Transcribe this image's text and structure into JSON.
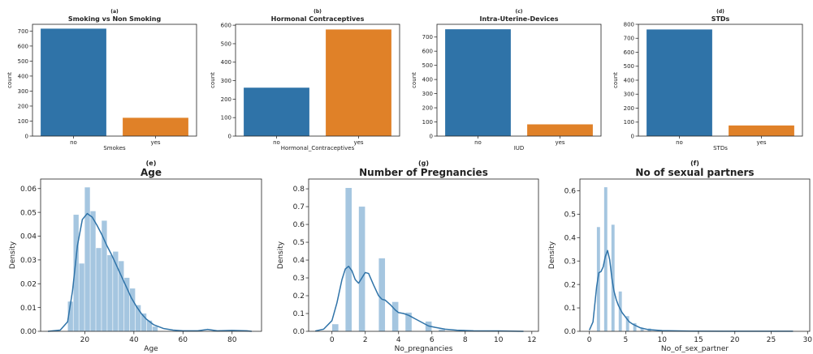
{
  "chart_data": [
    {
      "type": "bar",
      "letter": "(a)",
      "title": "Smoking vs Non Smoking",
      "xlabel": "Smokes",
      "ylabel": "count",
      "categories": [
        "no",
        "yes"
      ],
      "values": [
        716,
        122
      ],
      "colors": [
        "#2f73a8",
        "#e08128"
      ],
      "ylim": [
        0,
        745
      ],
      "yticks": [
        0,
        100,
        200,
        300,
        400,
        500,
        600,
        700
      ]
    },
    {
      "type": "bar",
      "letter": "(b)",
      "title": "Hormonal Contraceptives",
      "xlabel": "Hormonal_Contraceptives",
      "ylabel": "count",
      "categories": [
        "no",
        "yes"
      ],
      "values": [
        262,
        577
      ],
      "colors": [
        "#2f73a8",
        "#e08128"
      ],
      "ylim": [
        0,
        605
      ],
      "yticks": [
        0,
        100,
        200,
        300,
        400,
        500,
        600
      ]
    },
    {
      "type": "bar",
      "letter": "(c)",
      "title": "Intra-Uterine-Devices",
      "xlabel": "IUD",
      "ylabel": "count",
      "categories": [
        "no",
        "yes"
      ],
      "values": [
        755,
        83
      ],
      "colors": [
        "#2f73a8",
        "#e08128"
      ],
      "ylim": [
        0,
        790
      ],
      "yticks": [
        0,
        100,
        200,
        300,
        400,
        500,
        600,
        700
      ]
    },
    {
      "type": "bar",
      "letter": "(d)",
      "title": "STDs",
      "xlabel": "STDs",
      "ylabel": "count",
      "categories": [
        "no",
        "yes"
      ],
      "values": [
        763,
        76
      ],
      "colors": [
        "#2f73a8",
        "#e08128"
      ],
      "ylim": [
        0,
        800
      ],
      "yticks": [
        0,
        100,
        200,
        300,
        400,
        500,
        600,
        700,
        800
      ]
    },
    {
      "type": "histogram",
      "letter": "(e)",
      "title": "Age",
      "xlabel": "Age",
      "ylabel": "Density",
      "xlim": [
        2,
        92
      ],
      "ylim": [
        0,
        0.064
      ],
      "xticks": [
        20,
        40,
        60,
        80
      ],
      "yticks": [
        0.0,
        0.01,
        0.02,
        0.03,
        0.04,
        0.05,
        0.06
      ],
      "ytick_labels": [
        "0.00",
        "0.01",
        "0.02",
        "0.03",
        "0.04",
        "0.05",
        "0.06"
      ],
      "bin_edges": [
        13,
        15.3,
        17.6,
        19.9,
        22.2,
        24.5,
        26.8,
        29.1,
        31.4,
        33.7,
        36.0,
        38.3,
        40.6,
        42.9,
        45.2,
        47.5,
        49.8
      ],
      "bin_heights": [
        0.0125,
        0.049,
        0.0285,
        0.0605,
        0.0505,
        0.035,
        0.0465,
        0.032,
        0.0335,
        0.0295,
        0.0225,
        0.018,
        0.011,
        0.0075,
        0.0045,
        0.002
      ],
      "kde_x": [
        5,
        10,
        13,
        15,
        17,
        19,
        21,
        23,
        25,
        27,
        29,
        31,
        33,
        35,
        37,
        39,
        41,
        43,
        45,
        48,
        52,
        56,
        60,
        66,
        70,
        74,
        80,
        86,
        88
      ],
      "kde_y": [
        0,
        0.0005,
        0.004,
        0.017,
        0.036,
        0.047,
        0.0495,
        0.048,
        0.0445,
        0.0405,
        0.036,
        0.032,
        0.0275,
        0.023,
        0.0185,
        0.014,
        0.0105,
        0.0075,
        0.0052,
        0.0028,
        0.0012,
        0.0005,
        0.0002,
        0.0002,
        0.0008,
        0.0002,
        0.0004,
        0.0002,
        0
      ],
      "bar_color": "#a5c6e0",
      "line_color": "#2f73a8"
    },
    {
      "type": "histogram",
      "letter": "(g)",
      "title": "Number of Pregnancies",
      "xlabel": "No_pregnancies",
      "ylabel": "Density",
      "xlim": [
        -1.4,
        12.4
      ],
      "ylim": [
        0,
        0.855
      ],
      "xticks": [
        0,
        2,
        4,
        6,
        8,
        10,
        12
      ],
      "yticks": [
        0.0,
        0.1,
        0.2,
        0.3,
        0.4,
        0.5,
        0.6,
        0.7,
        0.8
      ],
      "ytick_labels": [
        "0.0",
        "0.1",
        "0.2",
        "0.3",
        "0.4",
        "0.5",
        "0.6",
        "0.7",
        "0.8"
      ],
      "bin_edges": [
        0,
        0.4,
        0.8,
        1.2,
        1.6,
        2.0,
        2.4,
        2.8,
        3.2,
        3.6,
        4.0,
        4.4,
        4.8,
        5.2,
        5.6,
        6.0,
        6.4,
        6.8,
        7.2,
        7.6,
        8.0,
        8.4,
        8.8,
        9.2,
        9.6,
        10.0,
        10.4,
        10.8,
        11.2
      ],
      "bin_heights": [
        0.04,
        0,
        0.805,
        0,
        0.7,
        0,
        0,
        0.41,
        0,
        0.165,
        0,
        0.105,
        0,
        0,
        0.055,
        0,
        0.01,
        0,
        0,
        0.008,
        0,
        0,
        0,
        0,
        0.003,
        0,
        0,
        0.002
      ],
      "kde_x": [
        -1.0,
        -0.5,
        0,
        0.3,
        0.6,
        0.8,
        1.0,
        1.2,
        1.4,
        1.6,
        1.8,
        2.0,
        2.2,
        2.5,
        2.8,
        3.0,
        3.2,
        3.5,
        3.8,
        4.0,
        4.3,
        4.6,
        5.0,
        5.4,
        5.8,
        6.2,
        6.8,
        7.5,
        8.5,
        10,
        11.5
      ],
      "kde_y": [
        0.002,
        0.012,
        0.06,
        0.16,
        0.29,
        0.35,
        0.365,
        0.34,
        0.29,
        0.27,
        0.3,
        0.33,
        0.325,
        0.26,
        0.2,
        0.18,
        0.175,
        0.15,
        0.12,
        0.105,
        0.1,
        0.09,
        0.07,
        0.05,
        0.03,
        0.022,
        0.012,
        0.006,
        0.003,
        0.002,
        0
      ],
      "bar_color": "#a5c6e0",
      "line_color": "#2f73a8"
    },
    {
      "type": "histogram",
      "letter": "(f)",
      "title": "No of sexual partners",
      "xlabel": "No_of_sex_partner",
      "ylabel": "Density",
      "xlim": [
        -1.3,
        30.3
      ],
      "ylim": [
        0,
        0.65
      ],
      "xticks": [
        0,
        5,
        10,
        15,
        20,
        25,
        30
      ],
      "yticks": [
        0.0,
        0.1,
        0.2,
        0.3,
        0.4,
        0.5,
        0.6
      ],
      "ytick_labels": [
        "0.0",
        "0.1",
        "0.2",
        "0.3",
        "0.4",
        "0.5",
        "0.6"
      ],
      "bin_edges": [
        1.0,
        1.5,
        2.0,
        2.5,
        3.0,
        3.5,
        4.0,
        4.5,
        5.0,
        5.5,
        6.0,
        6.5,
        7.0,
        7.5,
        8.0,
        8.5,
        9.0
      ],
      "bin_heights": [
        0.445,
        0,
        0.615,
        0,
        0.455,
        0,
        0.17,
        0,
        0.065,
        0,
        0.035,
        0,
        0.012,
        0,
        0.012,
        0
      ],
      "kde_x": [
        0,
        0.5,
        1.0,
        1.3,
        1.6,
        1.9,
        2.2,
        2.5,
        2.8,
        3.1,
        3.4,
        3.7,
        4.0,
        4.5,
        5.0,
        5.5,
        6.0,
        7.0,
        8.0,
        10,
        14,
        20,
        28
      ],
      "kde_y": [
        0.005,
        0.04,
        0.19,
        0.25,
        0.255,
        0.275,
        0.32,
        0.345,
        0.305,
        0.225,
        0.17,
        0.135,
        0.11,
        0.08,
        0.06,
        0.04,
        0.03,
        0.015,
        0.008,
        0.003,
        0.001,
        0.0005,
        0.0003
      ],
      "bar_color": "#a5c6e0",
      "line_color": "#2f73a8"
    }
  ]
}
